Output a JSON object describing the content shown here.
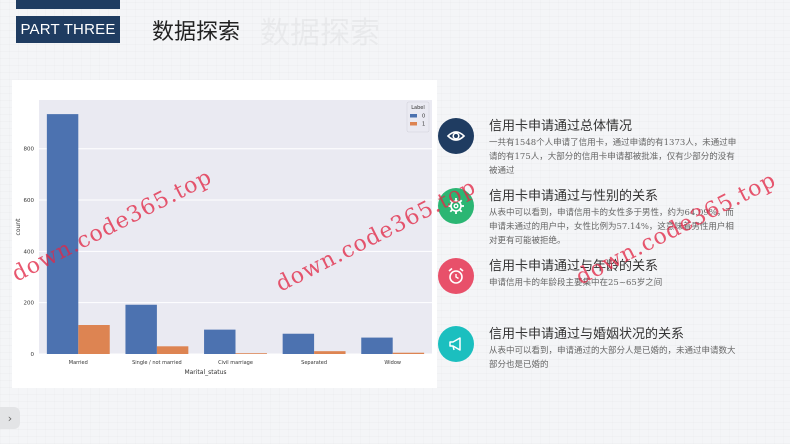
{
  "header": {
    "part_label": "PART THREE",
    "title": "数据探索"
  },
  "chart_data": {
    "type": "bar",
    "categories": [
      "Married",
      "Single / not married",
      "Civil marriage",
      "Separated",
      "Widow"
    ],
    "series": [
      {
        "name": "0",
        "values": [
          935,
          192,
          95,
          79,
          64
        ],
        "color": "#4c72b0"
      },
      {
        "name": "1",
        "values": [
          113,
          30,
          3,
          11,
          5
        ],
        "color": "#dd8452"
      }
    ],
    "xlabel": "Marital_status",
    "ylabel": "count",
    "y_ticks": [
      0,
      200,
      400,
      600,
      800
    ],
    "ylim": [
      0,
      990
    ],
    "legend_title": "Label",
    "legend_position": "top-right",
    "grid": true
  },
  "sections": [
    {
      "icon": "eye-icon",
      "color": "#1f3c61",
      "title": "信用卡申请通过总体情况",
      "body": "一共有1548个人申请了信用卡，通过申请的有1373人，未通过申请的有175人，大部分的信用卡申请都被批准，仅有少部分的没有被通过"
    },
    {
      "icon": "gear-icon",
      "color": "#2bb673",
      "title": "信用卡申请通过与性别的关系",
      "body": "从表中可以看到，申请信用卡的女性多于男性，约为64.09%，而申请未通过的用户中，女性比例为57.14%，这意味着男性用户相对更有可能被拒绝。"
    },
    {
      "icon": "alarm-clock-icon",
      "color": "#e8506a",
      "title": "信用卡申请通过与年龄的关系",
      "body": "申请信用卡的年龄段主要集中在25~65岁之间"
    },
    {
      "icon": "megaphone-icon",
      "color": "#1bbfbf",
      "title": "信用卡申请通过与婚姻状况的关系",
      "body": "从表中可以看到，申请通过的大部分人是已婚的，未通过申请数大部分也是已婚的"
    }
  ],
  "watermark": "down.code365.top",
  "nav": {
    "next_label": "›"
  }
}
